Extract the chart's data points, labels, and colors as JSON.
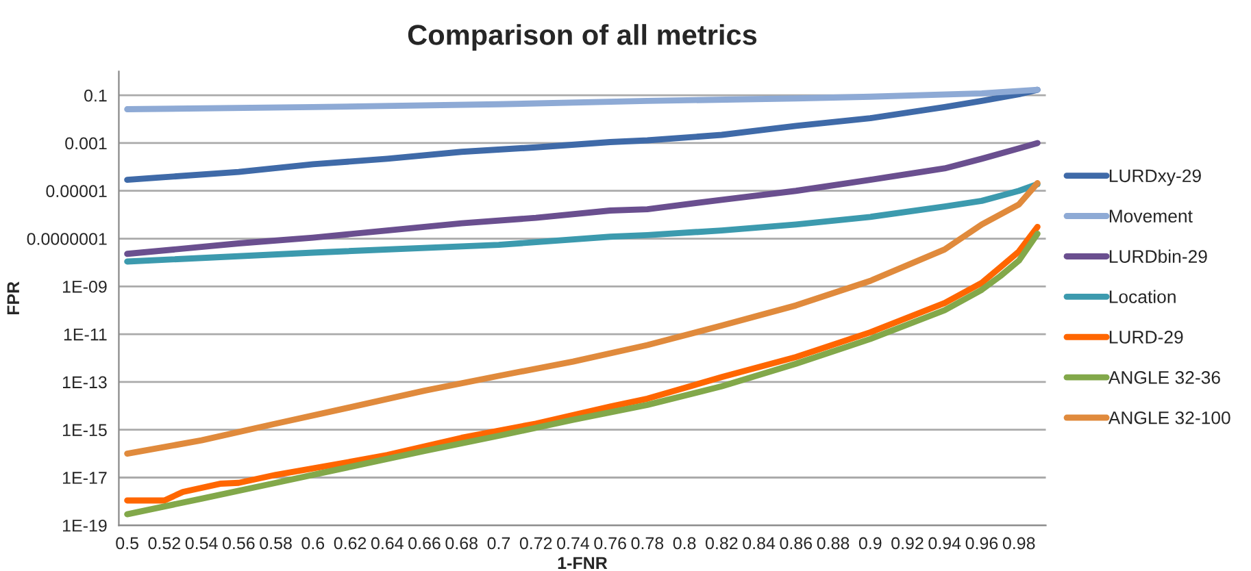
{
  "chart_data": {
    "type": "line",
    "title": "Comparison of all metrics",
    "xlabel": "1-FNR",
    "ylabel": "FPR",
    "log": "y",
    "grid": "y",
    "legend": "right",
    "marker": "none",
    "line_style": "solid",
    "xlim": [
      0.4955,
      0.9945
    ],
    "xticks": [
      0.5,
      0.52,
      0.54,
      0.56,
      0.58,
      0.6,
      0.62,
      0.64,
      0.66,
      0.68,
      0.7,
      0.72,
      0.74,
      0.76,
      0.78,
      0.8,
      0.82,
      0.84,
      0.86,
      0.88,
      0.9,
      0.92,
      0.94,
      0.96,
      0.98
    ],
    "ylim": [
      1e-19,
      1
    ],
    "yticks": [
      {
        "value": 1e-19,
        "label": "1E-19"
      },
      {
        "value": 1e-17,
        "label": "1E-17"
      },
      {
        "value": 1e-15,
        "label": "1E-15"
      },
      {
        "value": 1e-13,
        "label": "1E-13"
      },
      {
        "value": 1e-11,
        "label": "1E-11"
      },
      {
        "value": 1e-09,
        "label": "1E-09"
      },
      {
        "value": 1e-07,
        "label": "0.0000001"
      },
      {
        "value": 1e-05,
        "label": "0.00001"
      },
      {
        "value": 0.001,
        "label": "0.001"
      },
      {
        "value": 0.1,
        "label": "0.1"
      }
    ],
    "series": [
      {
        "name": "LURDxy-29",
        "color": "#3f6aa8",
        "x": [
          0.5,
          0.56,
          0.6,
          0.64,
          0.68,
          0.72,
          0.76,
          0.78,
          0.82,
          0.86,
          0.9,
          0.94,
          0.96,
          0.98,
          0.99
        ],
        "values": [
          2.9e-05,
          6.2e-05,
          0.00013,
          0.00022,
          0.00043,
          0.00066,
          0.0011,
          0.0013,
          0.0022,
          0.0052,
          0.011,
          0.032,
          0.058,
          0.11,
          0.17
        ]
      },
      {
        "name": "Movement",
        "color": "#8eaad5",
        "x": [
          0.5,
          0.6,
          0.7,
          0.78,
          0.86,
          0.9,
          0.96,
          0.99
        ],
        "values": [
          0.026,
          0.032,
          0.042,
          0.058,
          0.074,
          0.087,
          0.12,
          0.17
        ]
      },
      {
        "name": "LURDbin-29",
        "color": "#6a4f8f",
        "x": [
          0.5,
          0.56,
          0.6,
          0.64,
          0.68,
          0.72,
          0.76,
          0.78,
          0.82,
          0.86,
          0.9,
          0.94,
          0.96,
          0.98,
          0.99
        ],
        "values": [
          2.3e-08,
          6.3e-08,
          1.1e-07,
          2.2e-07,
          4.4e-07,
          7.4e-07,
          1.5e-06,
          1.7e-06,
          4.2e-06,
          1e-05,
          2.9e-05,
          8.7e-05,
          0.00022,
          0.0006,
          0.001
        ]
      },
      {
        "name": "Location",
        "color": "#3c9aae",
        "x": [
          0.5,
          0.6,
          0.7,
          0.76,
          0.78,
          0.82,
          0.86,
          0.9,
          0.94,
          0.96,
          0.98,
          0.99
        ],
        "values": [
          1.1e-08,
          2.6e-08,
          5.5e-08,
          1.2e-07,
          1.4e-07,
          2.2e-07,
          3.9e-07,
          8.1e-07,
          2.2e-06,
          3.8e-06,
          1e-05,
          1.9e-05
        ]
      },
      {
        "name": "LURD-29",
        "color": "#ff6600",
        "x": [
          0.5,
          0.52,
          0.53,
          0.55,
          0.56,
          0.58,
          0.6,
          0.64,
          0.68,
          0.72,
          0.76,
          0.78,
          0.82,
          0.86,
          0.9,
          0.94,
          0.96,
          0.97,
          0.98,
          0.99
        ],
        "values": [
          1.1e-18,
          1.1e-18,
          2.5e-18,
          5.5e-18,
          6e-18,
          1.3e-17,
          2.4e-17,
          8.7e-17,
          4.6e-16,
          1.8e-15,
          9.3e-15,
          2e-14,
          1.6e-13,
          1.1e-12,
          1.2e-11,
          2e-10,
          1.4e-09,
          6.3e-09,
          2.9e-08,
          3.1e-07
        ]
      },
      {
        "name": "ANGLE 32-36",
        "color": "#82a84a",
        "x": [
          0.5,
          0.54,
          0.58,
          0.62,
          0.66,
          0.7,
          0.74,
          0.78,
          0.82,
          0.86,
          0.9,
          0.94,
          0.96,
          0.97,
          0.98,
          0.99
        ],
        "values": [
          2.9e-19,
          1.3e-18,
          6e-18,
          2.8e-17,
          1.3e-16,
          5.6e-16,
          2.6e-15,
          1.1e-14,
          6.6e-14,
          5.8e-13,
          6.3e-12,
          1e-10,
          7.2e-10,
          2.7e-09,
          1.2e-08,
          1.6e-07
        ]
      },
      {
        "name": "ANGLE 32-100",
        "color": "#e08a3c",
        "x": [
          0.5,
          0.54,
          0.58,
          0.62,
          0.66,
          0.7,
          0.74,
          0.78,
          0.82,
          0.86,
          0.9,
          0.94,
          0.96,
          0.98,
          0.99
        ],
        "values": [
          1e-16,
          3.6e-16,
          1.8e-15,
          8.7e-15,
          4.3e-14,
          1.8e-13,
          7.1e-13,
          3.5e-12,
          2.3e-11,
          1.6e-10,
          1.7e-09,
          3.5e-08,
          3.9e-07,
          2.7e-06,
          2.1e-05
        ]
      }
    ]
  }
}
